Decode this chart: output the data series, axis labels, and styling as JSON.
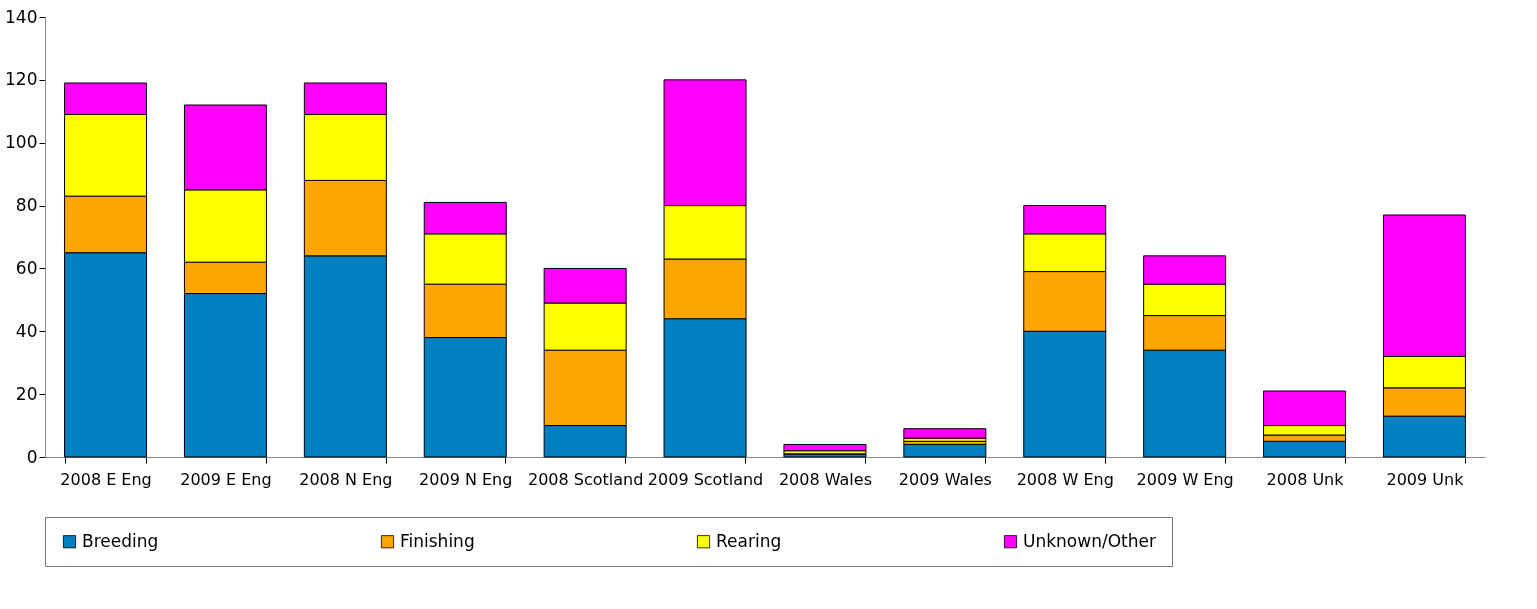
{
  "chart_data": {
    "type": "bar",
    "stacked": true,
    "categories": [
      "2008 E Eng",
      "2009 E Eng",
      "2008 N Eng",
      "2009 N Eng",
      "2008 Scotland",
      "2009 Scotland",
      "2008 Wales",
      "2009 Wales",
      "2008 W Eng",
      "2009 W Eng",
      "2008 Unk",
      "2009 Unk"
    ],
    "series": [
      {
        "name": "Breeding",
        "color": "#0080c0",
        "values": [
          65,
          52,
          64,
          38,
          10,
          44,
          1,
          4,
          40,
          34,
          5,
          13
        ]
      },
      {
        "name": "Finishing",
        "color": "#ffa500",
        "values": [
          18,
          10,
          24,
          17,
          24,
          19,
          0,
          1,
          19,
          11,
          2,
          9
        ]
      },
      {
        "name": "Rearing",
        "color": "#ffff00",
        "values": [
          26,
          23,
          21,
          16,
          15,
          17,
          1,
          1,
          12,
          10,
          3,
          10
        ]
      },
      {
        "name": "Unknown/Other",
        "color": "#ff00ff",
        "values": [
          10,
          27,
          10,
          10,
          11,
          40,
          2,
          3,
          9,
          9,
          11,
          45
        ]
      }
    ],
    "ylim": [
      0,
      140
    ],
    "yticks": [
      0,
      20,
      40,
      60,
      80,
      100,
      120,
      140
    ],
    "grid": false,
    "legend": "bottom"
  }
}
